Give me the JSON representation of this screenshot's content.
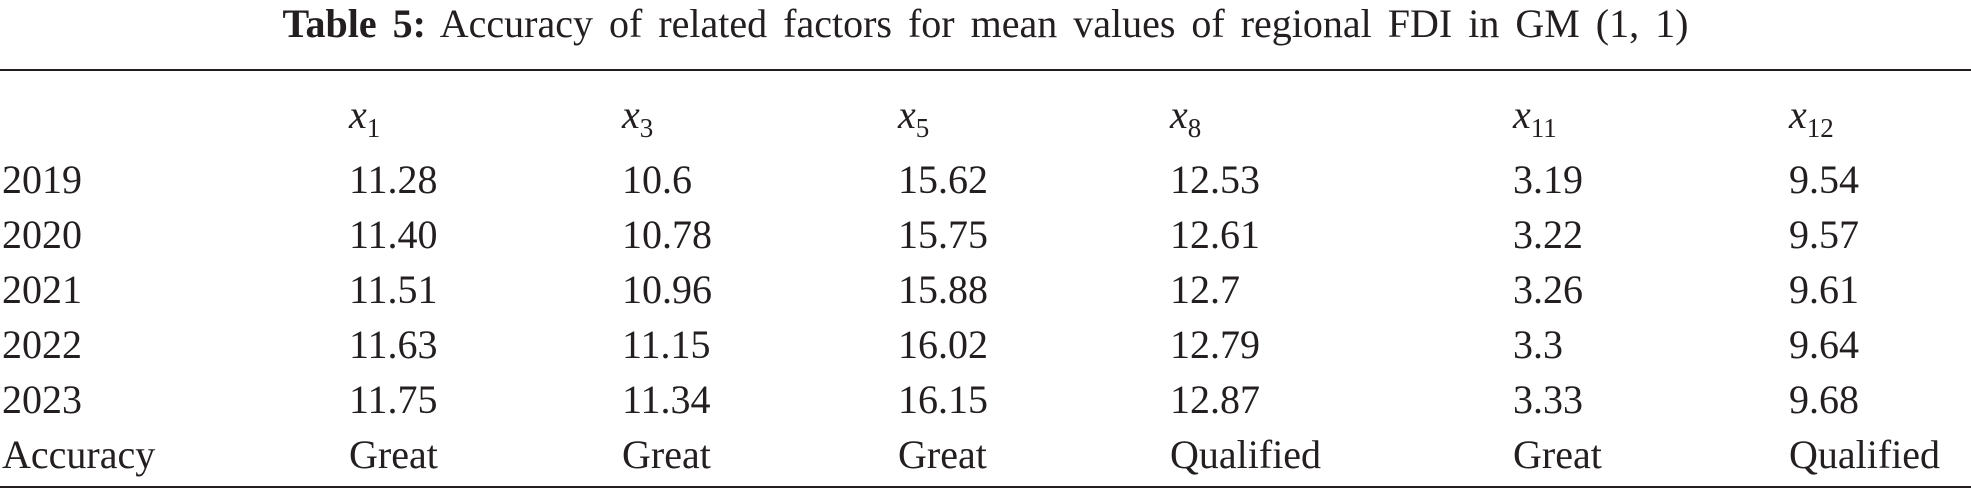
{
  "caption": {
    "label": "Table 5:",
    "text": "Accuracy of related factors for mean values of regional FDI in GM (1, 1)"
  },
  "table": {
    "columns": [
      {
        "var": "x",
        "sub": "1"
      },
      {
        "var": "x",
        "sub": "3"
      },
      {
        "var": "x",
        "sub": "5"
      },
      {
        "var": "x",
        "sub": "8"
      },
      {
        "var": "x",
        "sub": "11"
      },
      {
        "var": "x",
        "sub": "12"
      }
    ],
    "rows": [
      [
        "2019",
        "11.28",
        "10.6",
        "15.62",
        "12.53",
        "3.19",
        "9.54"
      ],
      [
        "2020",
        "11.40",
        "10.78",
        "15.75",
        "12.61",
        "3.22",
        "9.57"
      ],
      [
        "2021",
        "11.51",
        "10.96",
        "15.88",
        "12.7",
        "3.26",
        "9.61"
      ],
      [
        "2022",
        "11.63",
        "11.15",
        "16.02",
        "12.79",
        "3.3",
        "9.64"
      ],
      [
        "2023",
        "11.75",
        "11.34",
        "16.15",
        "12.87",
        "3.33",
        "9.68"
      ],
      [
        "Accuracy",
        "Great",
        "Great",
        "Great",
        "Qualified",
        "Great",
        "Qualified"
      ]
    ]
  }
}
